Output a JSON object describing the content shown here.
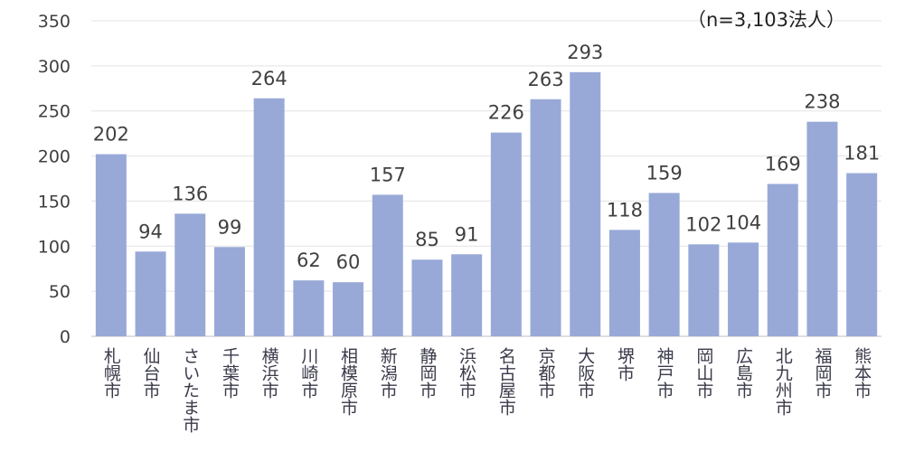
{
  "chart_data": {
    "type": "bar",
    "title": "",
    "annotation": "（n=3,103法人）",
    "xlabel": "",
    "ylabel": "",
    "ylim": [
      0,
      350
    ],
    "yticks": [
      0,
      50,
      100,
      150,
      200,
      250,
      300,
      350
    ],
    "grid": true,
    "bar_color": "#98a9d8",
    "categories": [
      "札幌市",
      "仙台市",
      "さいたま市",
      "千葉市",
      "横浜市",
      "川崎市",
      "相模原市",
      "新潟市",
      "静岡市",
      "浜松市",
      "名古屋市",
      "京都市",
      "大阪市",
      "堺市",
      "神戸市",
      "岡山市",
      "広島市",
      "北九州市",
      "福岡市",
      "熊本市"
    ],
    "values": [
      202,
      94,
      136,
      99,
      264,
      62,
      60,
      157,
      85,
      91,
      226,
      263,
      293,
      118,
      159,
      102,
      104,
      169,
      238,
      181
    ]
  }
}
